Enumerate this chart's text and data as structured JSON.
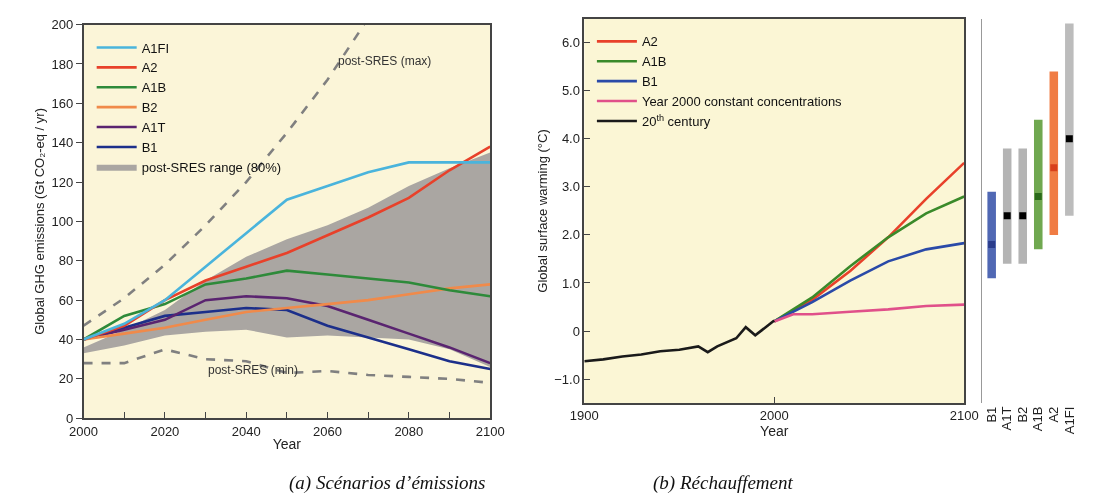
{
  "chart_data": [
    {
      "type": "line",
      "xlabel": "Year",
      "ylabel": "Global GHG emissions (Gt CO₂-eq / yr)",
      "x": [
        2000,
        2010,
        2020,
        2030,
        2040,
        2050,
        2060,
        2070,
        2080,
        2090,
        2100
      ],
      "xlim": [
        2000,
        2100
      ],
      "ylim": [
        0,
        200
      ],
      "xticks": [
        2000,
        {
          "value": 2010,
          "label": null
        },
        2020,
        {
          "value": 2030,
          "label": null
        },
        2040,
        {
          "value": 2050,
          "label": null
        },
        2060,
        {
          "value": 2070,
          "label": null
        },
        2080,
        {
          "value": 2090,
          "label": null
        },
        2100
      ],
      "yticks": [
        0,
        20,
        40,
        60,
        80,
        100,
        120,
        140,
        160,
        180,
        200
      ],
      "series": [
        {
          "name": "post-SRES range (80%)",
          "type": "area",
          "color": "#aaa6a2",
          "values": [
            null,
            null,
            null,
            null,
            null,
            null,
            null,
            null,
            null,
            null,
            null
          ],
          "upper": [
            36,
            45,
            55,
            70,
            82,
            91,
            98,
            107,
            118,
            127,
            135
          ],
          "lower": [
            33,
            37,
            42,
            44,
            45,
            41,
            42,
            41,
            40,
            35,
            26
          ]
        },
        {
          "type": "line",
          "line_style": "dashed",
          "color": "#808080",
          "x": [
            2000,
            2010,
            2020,
            2030,
            2040,
            2050,
            2060,
            2069
          ],
          "values": [
            47,
            61,
            78,
            98,
            120,
            145,
            172,
            200
          ]
        },
        {
          "type": "line",
          "line_style": "dashed",
          "color": "#808080",
          "values": [
            28,
            28,
            35,
            30,
            29,
            23,
            24,
            22,
            21,
            20,
            18
          ]
        },
        {
          "name": "B1",
          "color": "#1c2f8a",
          "values": [
            40,
            46,
            52,
            54,
            56,
            55,
            47,
            41,
            35,
            29,
            25
          ]
        },
        {
          "name": "A1T",
          "color": "#5a2470",
          "values": [
            40,
            45,
            50,
            60,
            62,
            61,
            57,
            50,
            43,
            36,
            28
          ]
        },
        {
          "name": "B2",
          "color": "#f08a4a",
          "values": [
            40,
            43,
            46,
            50,
            54,
            56,
            58,
            60,
            63,
            66,
            68
          ]
        },
        {
          "name": "A1B",
          "color": "#2e8a3a",
          "values": [
            40,
            52,
            58,
            68,
            71,
            75,
            73,
            71,
            69,
            65,
            62
          ]
        },
        {
          "name": "A2",
          "color": "#e8412a",
          "values": [
            40,
            47,
            60,
            70,
            77,
            84,
            93,
            102,
            112,
            126,
            138
          ]
        },
        {
          "name": "A1FI",
          "color": "#4ab4dc",
          "values": [
            40,
            48,
            60,
            77,
            94,
            111,
            118,
            125,
            130,
            130,
            130
          ]
        }
      ],
      "annotations": [
        "post-SRES (max)",
        "post-SRES (min)",
        "(a) Scénarios d’émissions"
      ],
      "legend": "top left",
      "grid": false
    },
    {
      "type": "line",
      "xlabel": "Year",
      "ylabel": "Global surface warming (°C)",
      "xlim": [
        1900,
        2100
      ],
      "ylim": [
        -1.5,
        6.5
      ],
      "xticks": [
        1900,
        2000,
        2100
      ],
      "yticks": [
        {
          "value": -1,
          "label": "−1.0"
        },
        0,
        {
          "value": 1,
          "label": "1.0"
        },
        {
          "value": 2,
          "label": "2.0"
        },
        {
          "value": 3,
          "label": "3.0"
        },
        {
          "value": 4,
          "label": "4.0"
        },
        {
          "value": 5,
          "label": "5.0"
        },
        {
          "value": 6,
          "label": "6.0"
        }
      ],
      "series": [
        {
          "name": "A2",
          "color": "#e8412a",
          "x": [
            2000,
            2020,
            2040,
            2060,
            2080,
            2100
          ],
          "values": [
            0.2,
            0.65,
            1.25,
            1.95,
            2.75,
            3.5
          ]
        },
        {
          "name": "A1B",
          "color": "#3a8a2a",
          "x": [
            2000,
            2020,
            2040,
            2060,
            2080,
            2100
          ],
          "values": [
            0.2,
            0.7,
            1.35,
            1.95,
            2.45,
            2.8
          ]
        },
        {
          "name": "B1",
          "color": "#2a4aa8",
          "x": [
            2000,
            2020,
            2040,
            2060,
            2080,
            2100
          ],
          "values": [
            0.2,
            0.6,
            1.05,
            1.45,
            1.7,
            1.83
          ]
        },
        {
          "name": "Year 2000 constant concentrations",
          "color": "#e0508a",
          "x": [
            2000,
            2010,
            2020,
            2040,
            2060,
            2080,
            2100
          ],
          "values": [
            0.2,
            0.35,
            0.35,
            0.4,
            0.45,
            0.52,
            0.55
          ]
        },
        {
          "name": "20$^{th}$ century",
          "color": "#1a1a1a",
          "x": [
            1900,
            1910,
            1920,
            1930,
            1940,
            1950,
            1960,
            1965,
            1970,
            1980,
            1985,
            1990,
            2000
          ],
          "values": [
            -0.63,
            -0.59,
            -0.53,
            -0.49,
            -0.42,
            -0.39,
            -0.32,
            -0.44,
            -0.32,
            -0.15,
            0.08,
            -0.09,
            0.22
          ]
        }
      ],
      "annotations": [
        "(b) Réchauffement"
      ],
      "legend": "top left",
      "grid": false
    },
    {
      "type": "bar",
      "categories": [
        "B1",
        "A1T",
        "B2",
        "A1B",
        "A2",
        "A1FI"
      ],
      "ylim": [
        -1.5,
        6.5
      ],
      "tick_labels": "x",
      "series": [
        {
          "type": "bar",
          "base": [
            1.1,
            1.4,
            1.4,
            1.7,
            2.0,
            2.4
          ],
          "values": [
            1.8,
            2.4,
            2.4,
            2.7,
            3.4,
            4.0
          ],
          "colors": [
            "#5068b4",
            "#b4b4b4",
            "#b4b4b4",
            "#70a850",
            "#f07c44",
            "#bcbcbc"
          ]
        },
        {
          "type": "scatter",
          "marker": "square",
          "values": [
            1.8,
            2.4,
            2.4,
            2.8,
            3.4,
            4.0
          ],
          "colors": [
            "#2a3c8c",
            "#000000",
            "#000000",
            "#2a6a1a",
            "#d8401c",
            "#000000"
          ]
        }
      ]
    }
  ]
}
